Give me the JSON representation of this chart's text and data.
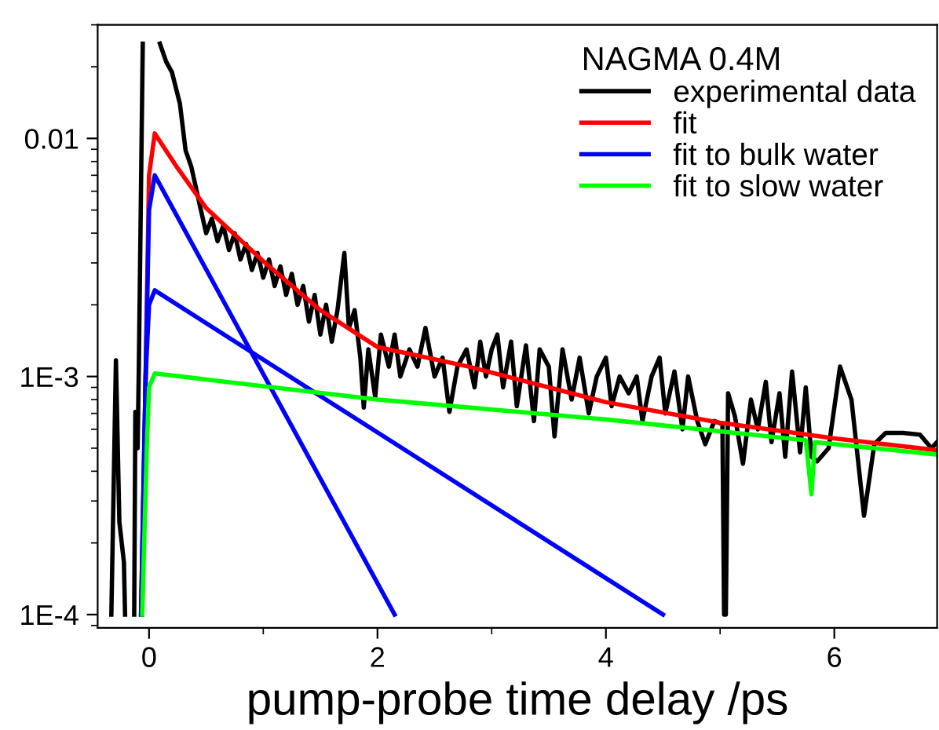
{
  "chart_data": {
    "type": "line",
    "xlabel": "pump-probe time delay /ps",
    "log": "y",
    "legend": "top right",
    "legend_title": "NAGMA 0.4M",
    "grid": false,
    "marker": "none",
    "line_style": "solid",
    "xlim": [
      -0.45,
      6.9
    ],
    "xticks": [
      0,
      2,
      4,
      6
    ],
    "ylim": [
      8.8e-05,
      0.03
    ],
    "yticks": [
      {
        "value": 0.0001,
        "label": "1E-4"
      },
      {
        "value": 0.001,
        "label": "1E-3"
      },
      0.01
    ],
    "series": [
      {
        "name": "experimental data",
        "color": "#000000",
        "x": [
          -0.33,
          -0.29,
          -0.26,
          -0.22,
          -0.21,
          -0.17,
          -0.13,
          -0.12,
          -0.1,
          -0.09,
          -0.055,
          0.02,
          0.095,
          0.15,
          0.2,
          0.27,
          0.32,
          0.37,
          0.45,
          0.5,
          0.55,
          0.6,
          0.65,
          0.7,
          0.75,
          0.8,
          0.85,
          0.9,
          0.95,
          1.0,
          1.05,
          1.1,
          1.15,
          1.2,
          1.25,
          1.3,
          1.35,
          1.4,
          1.45,
          1.5,
          1.55,
          1.6,
          1.65,
          1.71,
          1.75,
          1.8,
          1.85,
          1.88,
          1.92,
          1.98,
          2.03,
          2.1,
          2.15,
          2.2,
          2.28,
          2.35,
          2.42,
          2.5,
          2.57,
          2.63,
          2.7,
          2.78,
          2.85,
          2.9,
          2.95,
          3.0,
          3.05,
          3.1,
          3.17,
          3.22,
          3.3,
          3.37,
          3.42,
          3.5,
          3.55,
          3.62,
          3.7,
          3.77,
          3.85,
          3.92,
          4.0,
          4.05,
          4.12,
          4.2,
          4.27,
          4.32,
          4.4,
          4.47,
          4.52,
          4.6,
          4.67,
          4.72,
          4.8,
          4.87,
          4.95,
          5.02,
          5.035,
          5.05,
          5.07,
          5.13,
          5.2,
          5.27,
          5.33,
          5.4,
          5.45,
          5.52,
          5.57,
          5.63,
          5.7,
          5.75,
          5.8,
          5.85,
          5.95,
          6.05,
          6.15,
          6.26,
          6.35,
          6.45,
          6.6,
          6.75,
          6.85,
          6.9
        ],
        "values": [
          0.0001,
          0.00117,
          0.000245,
          0.000166,
          0.0001,
          null,
          0.0001,
          0.00071,
          0.0005,
          0.00105,
          0.025,
          null,
          0.025,
          0.021,
          0.019,
          0.014,
          0.0089,
          0.0076,
          0.0051,
          0.004,
          0.0046,
          0.0037,
          0.0043,
          0.0034,
          0.004,
          0.0031,
          0.0036,
          0.0028,
          0.0033,
          0.0026,
          0.0031,
          0.0024,
          0.0029,
          0.0022,
          0.0027,
          0.002,
          0.0024,
          0.0017,
          0.0022,
          0.0015,
          0.002,
          0.0014,
          0.0019,
          0.0033,
          0.0016,
          0.0019,
          0.0012,
          0.00074,
          0.0013,
          0.00082,
          0.0015,
          0.0011,
          0.0015,
          0.001,
          0.0013,
          0.0011,
          0.0016,
          0.001,
          0.0012,
          0.00071,
          0.0011,
          0.0013,
          0.0009,
          0.0014,
          0.001,
          0.0013,
          0.0015,
          0.0009,
          0.0014,
          0.00075,
          0.00135,
          0.00065,
          0.0013,
          0.0011,
          0.00056,
          0.0013,
          0.0008,
          0.0012,
          0.0007,
          0.001,
          0.0012,
          0.00075,
          0.001,
          0.00085,
          0.001,
          0.00065,
          0.001,
          0.0012,
          0.0007,
          0.00105,
          0.0006,
          0.001,
          0.00065,
          0.00052,
          0.00065,
          0.00063,
          0.0001,
          0.0001,
          0.00085,
          0.00068,
          0.00043,
          0.0008,
          0.0006,
          0.00095,
          0.00053,
          0.00085,
          0.00046,
          0.00105,
          0.00048,
          0.0009,
          0.00046,
          0.00044,
          0.0005,
          0.0011,
          0.0008,
          0.00026,
          0.00052,
          0.00058,
          0.00058,
          0.00057,
          0.0005,
          0.00053
        ]
      },
      {
        "name": "fit",
        "color": "#ff0000",
        "x": [
          -0.06,
          -0.03,
          0.0,
          0.05,
          0.25,
          0.5,
          1.0,
          1.5,
          2.0,
          2.8,
          4.0,
          5.0,
          6.0,
          6.9
        ],
        "values": [
          0.0001,
          0.001,
          0.007,
          0.0105,
          0.0075,
          0.0051,
          0.00305,
          0.0019,
          0.00133,
          0.0011,
          0.00078,
          0.00064,
          0.00055,
          0.00049
        ]
      },
      {
        "name": "fit to bulk water",
        "color": "#0000ff",
        "x": [
          -0.07,
          -0.03,
          0.0,
          0.05,
          2.15
        ],
        "values": [
          0.0001,
          0.001,
          0.005,
          0.007,
          0.0001
        ]
      },
      {
        "color": "#0000ff",
        "x": [
          -0.07,
          -0.03,
          0.0,
          0.05,
          4.5
        ],
        "values": [
          0.0001,
          0.001,
          0.002,
          0.0023,
          0.0001
        ]
      },
      {
        "name": "fit to slow water",
        "color": "#00ff00",
        "x": [
          -0.06,
          -0.02,
          0.0,
          0.05,
          2.0,
          4.0,
          5.75,
          5.8,
          5.83,
          6.9
        ],
        "values": [
          0.0001,
          0.0005,
          0.0009,
          0.00103,
          0.0008,
          0.00066,
          0.00054,
          0.00032,
          0.00053,
          0.00047
        ]
      }
    ]
  }
}
